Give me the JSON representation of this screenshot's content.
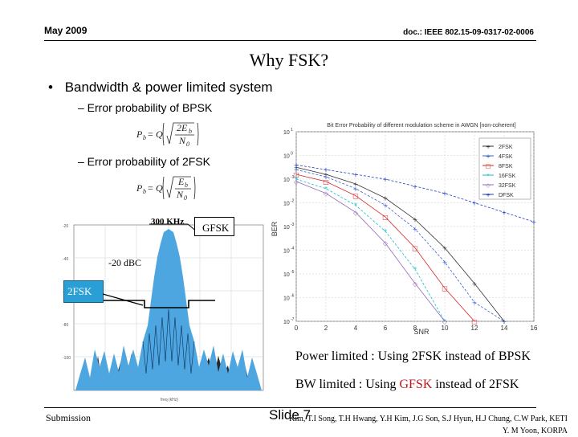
{
  "header": {
    "left": "May 2009",
    "right": "doc.: IEEE 802.15-09-0317-02-0006"
  },
  "title": "Why FSK?",
  "bullet": "Bandwidth & power limited system",
  "sub1": "– Error probability of BPSK",
  "sub2": "– Error probability of 2FSK",
  "formula_bpsk": {
    "lhs": "P",
    "sub": "b",
    "q": "Q",
    "num": "2E",
    "numsub": "b",
    "den": "N",
    "densub": "0"
  },
  "formula_2fsk": {
    "lhs": "P",
    "sub": "b",
    "q": "Q",
    "num": "E",
    "numsub": "b",
    "den": "N",
    "densub": "0"
  },
  "spectrum": {
    "label_300": "300 KHz",
    "label_gfsk": "GFSK",
    "label_20db": "-20 dBC",
    "label_2fsk": "2FSK",
    "fill_color": "#4da6e0",
    "dark_color": "#111111"
  },
  "ber_chart": {
    "title": "Bit Error Probability of different modulation scheme in AWGN [non-coherent]",
    "xlabel": "SNR",
    "ylabel": "BER",
    "x_ticks": [
      "0",
      "2",
      "4",
      "6",
      "8",
      "10",
      "12",
      "14",
      "16"
    ],
    "y_ticks": [
      "10",
      "10",
      "10",
      "10",
      "10",
      "10",
      "10",
      "10",
      "10"
    ],
    "legend": [
      "2FSK",
      "4FSK",
      "8FSK",
      "16FSK",
      "32FSK",
      "DFSK"
    ]
  },
  "chart_data": {
    "type": "line",
    "title": "Bit Error Probability of different modulation scheme in AWGN [non-coherent]",
    "xlabel": "SNR",
    "ylabel": "BER",
    "xlim": [
      0,
      16
    ],
    "ylim_exp": [
      -7,
      1
    ],
    "yscale": "log",
    "grid": true,
    "legend_position": "top-right",
    "series": [
      {
        "name": "2FSK",
        "color": "#333333",
        "x": [
          0,
          2,
          4,
          6,
          8,
          10,
          12,
          14
        ],
        "log10_y": [
          -0.5,
          -0.8,
          -1.2,
          -1.8,
          -2.7,
          -3.9,
          -5.4,
          -7.0
        ]
      },
      {
        "name": "4FSK",
        "color": "#3a5fcd",
        "x": [
          0,
          2,
          4,
          6,
          8,
          10,
          12,
          14
        ],
        "log10_y": [
          -0.6,
          -0.9,
          -1.4,
          -2.1,
          -3.1,
          -4.5,
          -6.2,
          -7.0
        ]
      },
      {
        "name": "8FSK",
        "color": "#d62728",
        "x": [
          0,
          2,
          4,
          6,
          8,
          10,
          12
        ],
        "log10_y": [
          -0.8,
          -1.1,
          -1.7,
          -2.6,
          -3.9,
          -5.6,
          -7.0
        ]
      },
      {
        "name": "16FSK",
        "color": "#17becf",
        "x": [
          0,
          2,
          4,
          6,
          8,
          10
        ],
        "log10_y": [
          -1.0,
          -1.4,
          -2.1,
          -3.2,
          -4.8,
          -7.0
        ]
      },
      {
        "name": "32FSK",
        "color": "#9467bd",
        "x": [
          0,
          2,
          4,
          6,
          8,
          10
        ],
        "log10_y": [
          -1.1,
          -1.6,
          -2.4,
          -3.7,
          -5.4,
          -7.0
        ]
      },
      {
        "name": "DFSK",
        "color": "#1f3fbf",
        "x": [
          0,
          2,
          4,
          6,
          8,
          10,
          12,
          14,
          16
        ],
        "log10_y": [
          -0.4,
          -0.6,
          -0.8,
          -1.0,
          -1.3,
          -1.6,
          -2.0,
          -2.4,
          -2.8
        ]
      }
    ]
  },
  "captions": {
    "power_limited": "Power limited : Using 2FSK instead of BPSK",
    "bw_prefix": "BW limited : Using ",
    "bw_highlight": "GFSK",
    "bw_suffix": " instead  of 2FSK"
  },
  "footer": {
    "left": "Submission",
    "slide": "Slide 7",
    "authors_1": "Kim, T.I Song, T.H Hwang, Y.H Kim, J.G Son, S.J Hyun, H.J Chung, C.W Park, KETI",
    "authors_2": "Y. M Yoon, KORPA"
  }
}
